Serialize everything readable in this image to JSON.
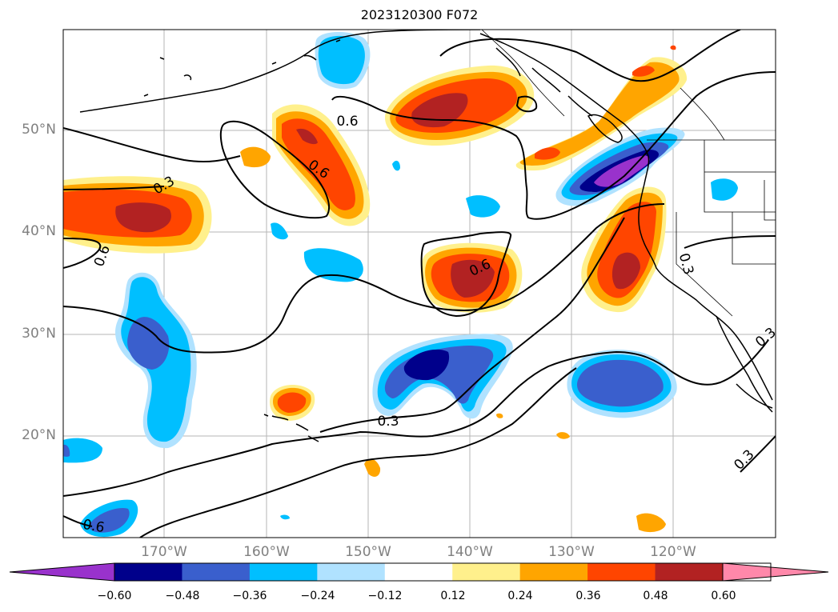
{
  "title": "2023120300 F072",
  "map": {
    "lat_labels": [
      "50°N",
      "40°N",
      "30°N",
      "20°N"
    ],
    "lon_labels": [
      "170°W",
      "160°W",
      "150°W",
      "140°W",
      "130°W",
      "120°W"
    ],
    "contour_labels": [
      "0.6",
      "0.6",
      "0.3",
      "0.6",
      "0.6",
      "0.3",
      "0.3",
      "0.6",
      "0.3",
      "0.3"
    ]
  },
  "colorbar": {
    "tick_labels": [
      "−0.60",
      "−0.48",
      "−0.36",
      "−0.24",
      "−0.12",
      "0.12",
      "0.24",
      "0.36",
      "0.48",
      "0.60"
    ],
    "colors": [
      "#9932cc",
      "#00008b",
      "#3a5fcd",
      "#00bfff",
      "#b0e2ff",
      "#ffffff",
      "#fff08c",
      "#ffa500",
      "#ff4500",
      "#b22222",
      "#ff88aa"
    ]
  }
}
